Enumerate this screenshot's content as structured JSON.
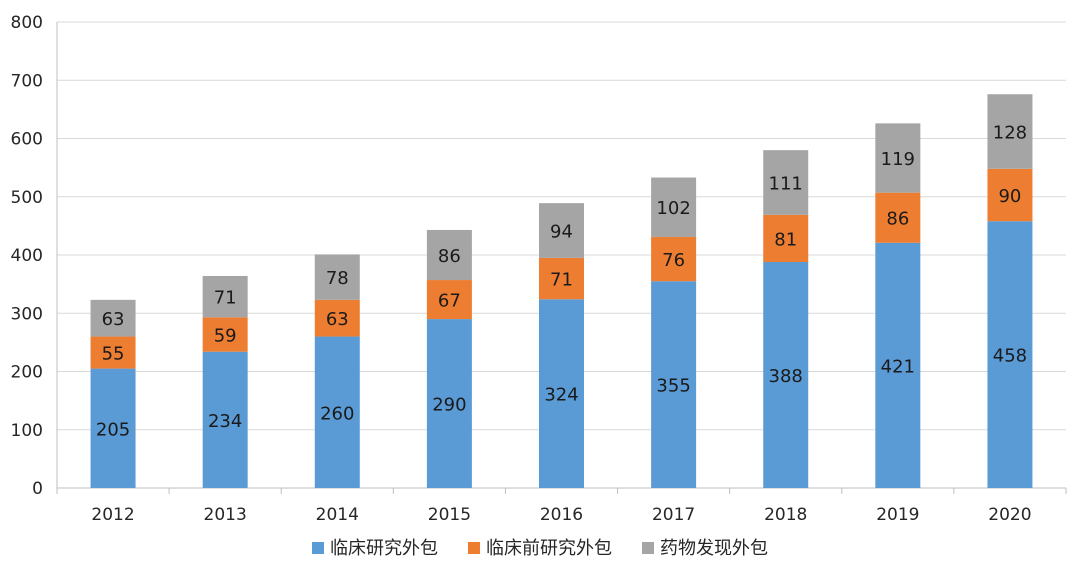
{
  "chart_data": {
    "type": "bar",
    "stacked": true,
    "categories": [
      "2012",
      "2013",
      "2014",
      "2015",
      "2016",
      "2017",
      "2018",
      "2019",
      "2020"
    ],
    "series": [
      {
        "name": "临床研究外包",
        "color": "#5B9BD5",
        "values": [
          205,
          234,
          260,
          290,
          324,
          355,
          388,
          421,
          458
        ]
      },
      {
        "name": "临床前研究外包",
        "color": "#ED7D31",
        "values": [
          55,
          59,
          63,
          67,
          71,
          76,
          81,
          86,
          90
        ]
      },
      {
        "name": "药物发现外包",
        "color": "#A5A5A5",
        "values": [
          63,
          71,
          78,
          86,
          94,
          102,
          111,
          119,
          128
        ]
      }
    ],
    "title": "",
    "xlabel": "",
    "ylabel": "",
    "ylim": [
      0,
      800
    ],
    "yticks": [
      0,
      100,
      200,
      300,
      400,
      500,
      600,
      700,
      800
    ],
    "grid": true,
    "legend": "bottom"
  }
}
